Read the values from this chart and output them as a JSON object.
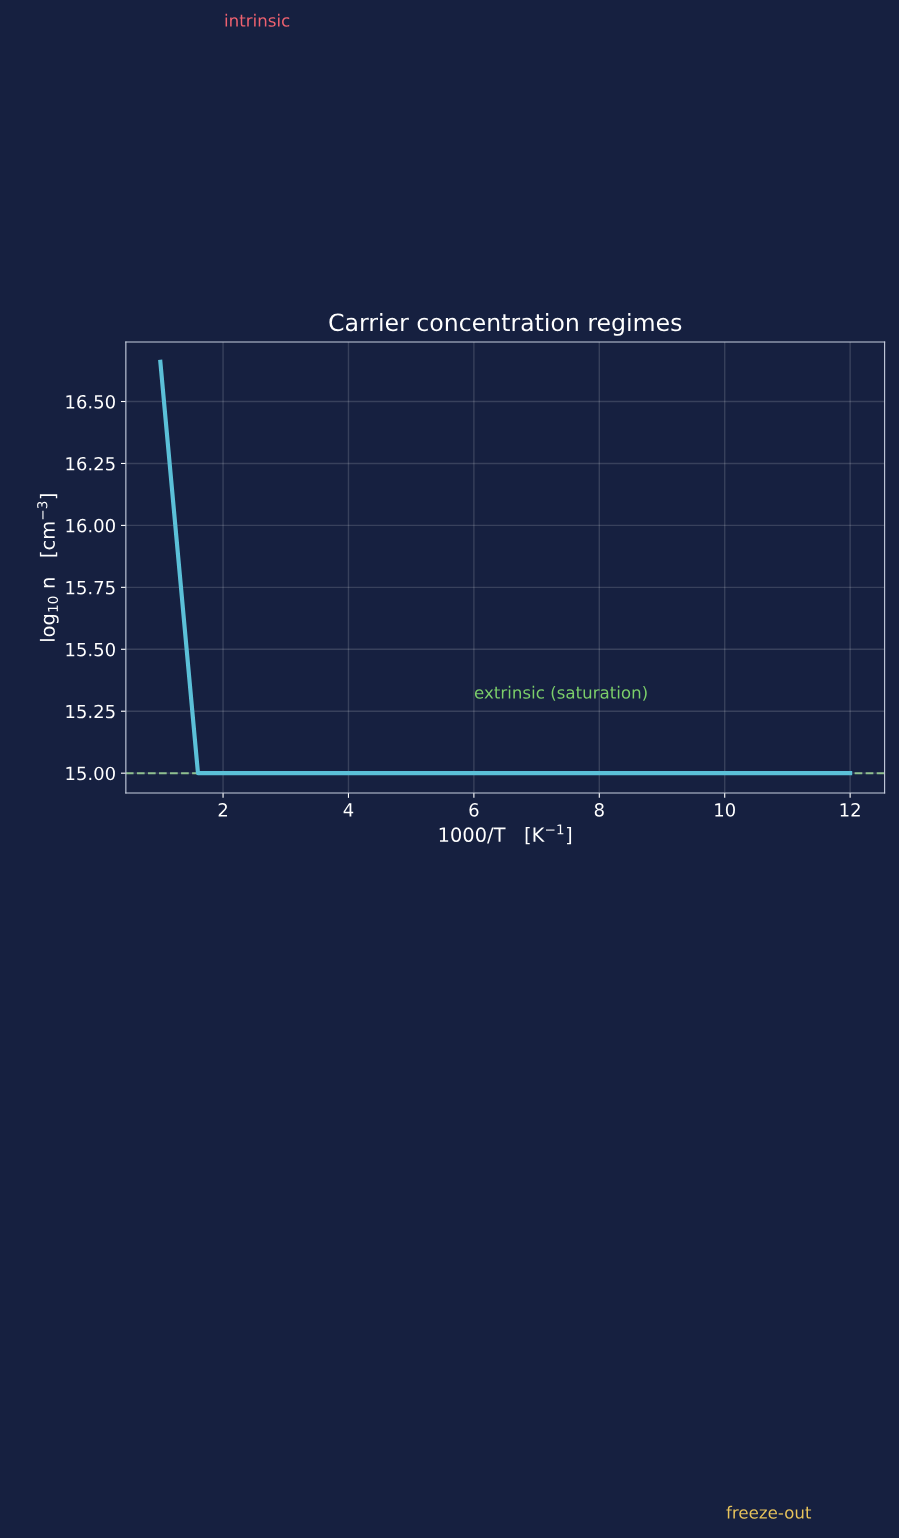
{
  "chart_data": {
    "type": "line",
    "title": "Carrier concentration regimes",
    "xlabel": "1000/T   [K$^{−1}$]",
    "ylabel": "log$_{10}$ n   [cm$^{−3}$]",
    "series": [
      {
        "color": "#5bc0d8",
        "x": [
          1.0,
          1.6,
          2,
          4,
          6,
          8,
          10,
          12
        ],
        "values": [
          16.66,
          15.0,
          15.0,
          15.0,
          15.0,
          15.0,
          15.0,
          15.0
        ]
      }
    ],
    "xlim": [
      0.45,
      12.55
    ],
    "ylim": [
      14.92,
      16.74
    ],
    "xticks": [
      2,
      4,
      6,
      8,
      10,
      12
    ],
    "yticks": [
      {
        "value": 15,
        "label": "15.00"
      },
      {
        "value": 15.25,
        "label": "15.25"
      },
      {
        "value": 15.5,
        "label": "15.50"
      },
      {
        "value": 15.75,
        "label": "15.75"
      },
      {
        "value": 16,
        "label": "16.00"
      },
      {
        "value": 16.25,
        "label": "16.25"
      },
      {
        "value": 16.5,
        "label": "16.50"
      }
    ],
    "ref_lines": [
      {
        "axis": "y",
        "value": 15.0,
        "color": "#8fbf8f",
        "line_style": "dashed"
      }
    ],
    "annotations": [
      "intrinsic",
      "extrinsic (saturation)",
      "freeze-out"
    ],
    "grid": true,
    "marker": "none",
    "line_style": "solid"
  }
}
